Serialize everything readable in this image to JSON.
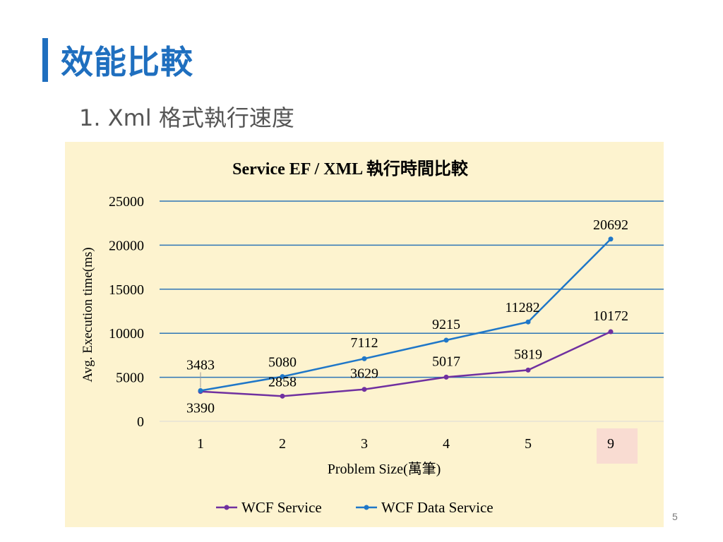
{
  "slide": {
    "title": "效能比較",
    "subtitle": "1.  Xml 格式執行速度",
    "page_number": "5",
    "accent_color": "#1f6fbf"
  },
  "chart_data": {
    "type": "line",
    "title": "Service EF / XML 執行時間比較",
    "xlabel": "Problem Size(萬筆)",
    "ylabel": "Avg. Execution time(ms)",
    "categories": [
      "1",
      "2",
      "3",
      "4",
      "5",
      "9"
    ],
    "ylim": [
      0,
      25000
    ],
    "yticks": [
      "0",
      "5000",
      "10000",
      "15000",
      "20000",
      "25000"
    ],
    "grid": true,
    "legend_position": "bottom",
    "background_color": "#fdf3cf",
    "highlighted_category": "9",
    "series": [
      {
        "name": "WCF Service",
        "color": "#7030a0",
        "values": [
          3390,
          2858,
          3629,
          5017,
          5819,
          10172
        ]
      },
      {
        "name": "WCF Data Service",
        "color": "#1f77c8",
        "values": [
          3483,
          5080,
          7112,
          9215,
          11282,
          20692
        ]
      }
    ]
  }
}
